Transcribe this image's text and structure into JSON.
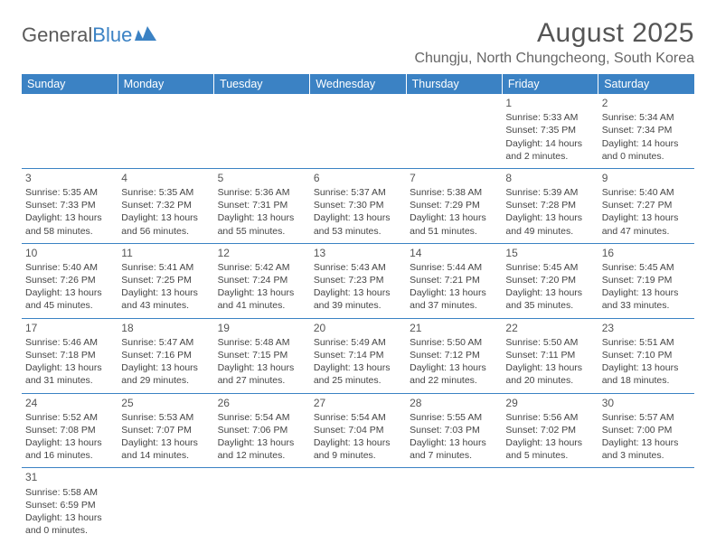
{
  "logo": {
    "text1": "General",
    "text2": "Blue"
  },
  "title": "August 2025",
  "location": "Chungju, North Chungcheong, South Korea",
  "colors": {
    "header_bg": "#3b82c4",
    "header_text": "#ffffff",
    "text": "#444444",
    "title_color": "#555555",
    "border": "#3b82c4"
  },
  "weekdays": [
    "Sunday",
    "Monday",
    "Tuesday",
    "Wednesday",
    "Thursday",
    "Friday",
    "Saturday"
  ],
  "weeks": [
    [
      null,
      null,
      null,
      null,
      null,
      {
        "n": "1",
        "sr": "5:33 AM",
        "ss": "7:35 PM",
        "dl": "14 hours and 2 minutes."
      },
      {
        "n": "2",
        "sr": "5:34 AM",
        "ss": "7:34 PM",
        "dl": "14 hours and 0 minutes."
      }
    ],
    [
      {
        "n": "3",
        "sr": "5:35 AM",
        "ss": "7:33 PM",
        "dl": "13 hours and 58 minutes."
      },
      {
        "n": "4",
        "sr": "5:35 AM",
        "ss": "7:32 PM",
        "dl": "13 hours and 56 minutes."
      },
      {
        "n": "5",
        "sr": "5:36 AM",
        "ss": "7:31 PM",
        "dl": "13 hours and 55 minutes."
      },
      {
        "n": "6",
        "sr": "5:37 AM",
        "ss": "7:30 PM",
        "dl": "13 hours and 53 minutes."
      },
      {
        "n": "7",
        "sr": "5:38 AM",
        "ss": "7:29 PM",
        "dl": "13 hours and 51 minutes."
      },
      {
        "n": "8",
        "sr": "5:39 AM",
        "ss": "7:28 PM",
        "dl": "13 hours and 49 minutes."
      },
      {
        "n": "9",
        "sr": "5:40 AM",
        "ss": "7:27 PM",
        "dl": "13 hours and 47 minutes."
      }
    ],
    [
      {
        "n": "10",
        "sr": "5:40 AM",
        "ss": "7:26 PM",
        "dl": "13 hours and 45 minutes."
      },
      {
        "n": "11",
        "sr": "5:41 AM",
        "ss": "7:25 PM",
        "dl": "13 hours and 43 minutes."
      },
      {
        "n": "12",
        "sr": "5:42 AM",
        "ss": "7:24 PM",
        "dl": "13 hours and 41 minutes."
      },
      {
        "n": "13",
        "sr": "5:43 AM",
        "ss": "7:23 PM",
        "dl": "13 hours and 39 minutes."
      },
      {
        "n": "14",
        "sr": "5:44 AM",
        "ss": "7:21 PM",
        "dl": "13 hours and 37 minutes."
      },
      {
        "n": "15",
        "sr": "5:45 AM",
        "ss": "7:20 PM",
        "dl": "13 hours and 35 minutes."
      },
      {
        "n": "16",
        "sr": "5:45 AM",
        "ss": "7:19 PM",
        "dl": "13 hours and 33 minutes."
      }
    ],
    [
      {
        "n": "17",
        "sr": "5:46 AM",
        "ss": "7:18 PM",
        "dl": "13 hours and 31 minutes."
      },
      {
        "n": "18",
        "sr": "5:47 AM",
        "ss": "7:16 PM",
        "dl": "13 hours and 29 minutes."
      },
      {
        "n": "19",
        "sr": "5:48 AM",
        "ss": "7:15 PM",
        "dl": "13 hours and 27 minutes."
      },
      {
        "n": "20",
        "sr": "5:49 AM",
        "ss": "7:14 PM",
        "dl": "13 hours and 25 minutes."
      },
      {
        "n": "21",
        "sr": "5:50 AM",
        "ss": "7:12 PM",
        "dl": "13 hours and 22 minutes."
      },
      {
        "n": "22",
        "sr": "5:50 AM",
        "ss": "7:11 PM",
        "dl": "13 hours and 20 minutes."
      },
      {
        "n": "23",
        "sr": "5:51 AM",
        "ss": "7:10 PM",
        "dl": "13 hours and 18 minutes."
      }
    ],
    [
      {
        "n": "24",
        "sr": "5:52 AM",
        "ss": "7:08 PM",
        "dl": "13 hours and 16 minutes."
      },
      {
        "n": "25",
        "sr": "5:53 AM",
        "ss": "7:07 PM",
        "dl": "13 hours and 14 minutes."
      },
      {
        "n": "26",
        "sr": "5:54 AM",
        "ss": "7:06 PM",
        "dl": "13 hours and 12 minutes."
      },
      {
        "n": "27",
        "sr": "5:54 AM",
        "ss": "7:04 PM",
        "dl": "13 hours and 9 minutes."
      },
      {
        "n": "28",
        "sr": "5:55 AM",
        "ss": "7:03 PM",
        "dl": "13 hours and 7 minutes."
      },
      {
        "n": "29",
        "sr": "5:56 AM",
        "ss": "7:02 PM",
        "dl": "13 hours and 5 minutes."
      },
      {
        "n": "30",
        "sr": "5:57 AM",
        "ss": "7:00 PM",
        "dl": "13 hours and 3 minutes."
      }
    ],
    [
      {
        "n": "31",
        "sr": "5:58 AM",
        "ss": "6:59 PM",
        "dl": "13 hours and 0 minutes."
      },
      null,
      null,
      null,
      null,
      null,
      null
    ]
  ],
  "labels": {
    "sunrise": "Sunrise: ",
    "sunset": "Sunset: ",
    "daylight": "Daylight: "
  }
}
